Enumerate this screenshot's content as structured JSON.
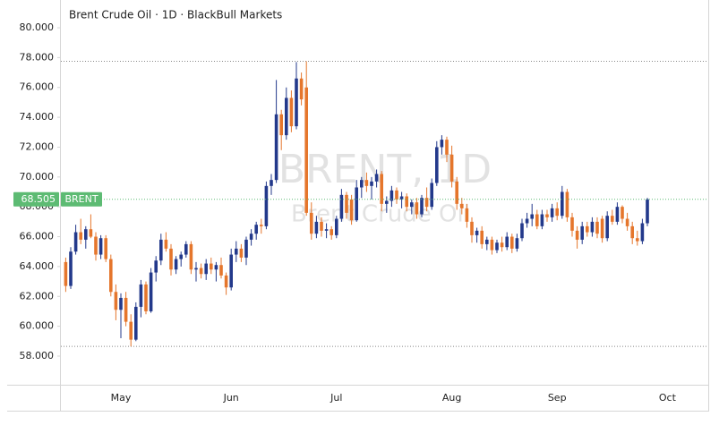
{
  "chart_data": {
    "type": "candlestick",
    "title": "Brent Crude Oil · 1D · BlackBull Markets",
    "watermark": "BRENT, 1D",
    "watermark_subtitle": "Brent Crude Oil",
    "symbol": "BRENT",
    "last_price": {
      "value": 68.505,
      "label": "68.505"
    },
    "up_color": "#23398b",
    "down_color": "#e5762c",
    "last_color": "#5dbb73",
    "ylim": [
      56.08,
      81.86
    ],
    "yticks": [
      {
        "value": 58,
        "label": "58.000"
      },
      {
        "value": 60,
        "label": "60.000"
      },
      {
        "value": 62,
        "label": "62.000"
      },
      {
        "value": 64,
        "label": "64.000"
      },
      {
        "value": 66,
        "label": "66.000"
      },
      {
        "value": 68,
        "label": "68.000"
      },
      {
        "value": 70,
        "label": "70.000"
      },
      {
        "value": 72,
        "label": "72.000"
      },
      {
        "value": 74,
        "label": "74.000"
      },
      {
        "value": 76,
        "label": "76.000"
      },
      {
        "value": 78,
        "label": "78.000"
      },
      {
        "value": 80,
        "label": "80.000"
      }
    ],
    "categories": [
      null,
      null,
      null,
      null,
      null,
      null,
      null,
      null,
      null,
      null,
      null,
      "May",
      null,
      null,
      null,
      null,
      null,
      null,
      null,
      null,
      null,
      null,
      null,
      null,
      null,
      null,
      null,
      null,
      null,
      null,
      null,
      null,
      null,
      "Jun",
      null,
      null,
      null,
      null,
      null,
      null,
      null,
      null,
      null,
      null,
      null,
      null,
      null,
      null,
      null,
      null,
      null,
      null,
      null,
      null,
      "Jul",
      null,
      null,
      null,
      null,
      null,
      null,
      null,
      null,
      null,
      null,
      null,
      null,
      null,
      null,
      null,
      null,
      null,
      null,
      null,
      null,
      null,
      null,
      "Aug",
      null,
      null,
      null,
      null,
      null,
      null,
      null,
      null,
      null,
      null,
      null,
      null,
      null,
      null,
      null,
      null,
      null,
      null,
      null,
      null,
      "Sep",
      null,
      null,
      null,
      null,
      null,
      null,
      null,
      null,
      null,
      null,
      null,
      null,
      null,
      null,
      null,
      null,
      null,
      null,
      null,
      null,
      null,
      "Oct"
    ],
    "open": [
      64.3,
      62.7,
      65.0,
      66.3,
      65.8,
      66.5,
      66.0,
      64.8,
      65.9,
      64.5,
      62.3,
      61.1,
      61.9,
      60.3,
      59.1,
      61.3,
      62.8,
      61.0,
      63.6,
      64.4,
      65.8,
      65.2,
      63.8,
      64.5,
      64.8,
      65.5,
      63.8,
      63.9,
      63.5,
      64.2,
      63.8,
      64.1,
      63.4,
      62.6,
      64.8,
      65.2,
      64.6,
      65.8,
      66.2,
      66.8,
      66.7,
      69.4,
      69.8,
      74.2,
      72.8,
      75.3,
      73.4,
      76.6,
      76.0,
      67.6,
      66.2,
      67.0,
      66.4,
      66.5,
      66.1,
      67.2,
      68.8,
      68.5,
      67.1,
      69.3,
      69.8,
      69.4,
      69.7,
      70.2,
      68.2,
      68.4,
      69.1,
      68.5,
      68.7,
      68.0,
      68.3,
      67.5,
      68.6,
      68.0,
      69.6,
      72.0,
      72.5,
      71.5,
      69.7,
      68.2,
      67.9,
      67.0,
      66.1,
      66.4,
      65.5,
      65.8,
      65.1,
      65.6,
      65.3,
      66.0,
      65.2,
      65.9,
      66.9,
      67.2,
      67.5,
      66.7,
      67.5,
      67.3,
      67.9,
      67.4,
      69.0,
      67.3,
      66.4,
      65.8,
      66.7,
      66.3,
      67.0,
      67.2,
      65.9,
      67.4,
      67.0,
      68.0,
      67.2,
      66.7,
      65.9,
      65.7,
      66.9,
      null,
      null,
      null,
      null
    ],
    "high": [
      64.6,
      65.3,
      66.8,
      67.2,
      66.7,
      67.5,
      66.3,
      66.1,
      66.1,
      64.8,
      62.8,
      62.2,
      62.3,
      60.8,
      61.6,
      63.1,
      63.0,
      63.9,
      64.7,
      66.2,
      66.3,
      65.5,
      64.7,
      65.0,
      65.7,
      65.7,
      64.3,
      64.2,
      64.5,
      64.6,
      64.3,
      64.6,
      63.6,
      65.2,
      65.7,
      65.5,
      66.0,
      66.5,
      67.0,
      67.2,
      69.7,
      70.2,
      76.5,
      74.5,
      76.0,
      75.8,
      77.7,
      77.0,
      77.75,
      68.3,
      67.4,
      67.3,
      66.9,
      66.7,
      67.4,
      69.2,
      69.0,
      68.8,
      69.8,
      70.0,
      70.3,
      70.0,
      70.5,
      70.4,
      68.7,
      69.4,
      69.3,
      69.0,
      68.9,
      68.5,
      68.6,
      68.8,
      69.3,
      69.9,
      72.4,
      72.8,
      72.7,
      72.1,
      70.0,
      68.6,
      68.2,
      67.3,
      66.6,
      66.7,
      66.0,
      66.0,
      65.8,
      66.0,
      66.3,
      66.2,
      66.2,
      67.2,
      67.6,
      68.2,
      67.8,
      67.8,
      67.8,
      68.2,
      68.3,
      69.4,
      69.2,
      67.6,
      66.7,
      67.0,
      67.0,
      67.3,
      67.3,
      67.4,
      67.7,
      67.8,
      68.3,
      68.1,
      67.6,
      67.0,
      66.4,
      67.2,
      68.6,
      null,
      null,
      null,
      null
    ],
    "low": [
      62.3,
      62.5,
      64.8,
      65.5,
      65.2,
      65.9,
      64.4,
      64.5,
      64.3,
      62.0,
      60.4,
      59.2,
      60.0,
      58.65,
      59.0,
      60.6,
      60.8,
      60.9,
      63.0,
      64.1,
      65.0,
      63.4,
      63.5,
      64.0,
      64.6,
      63.5,
      63.0,
      63.2,
      63.1,
      63.5,
      63.0,
      63.2,
      62.1,
      62.4,
      64.3,
      64.3,
      64.1,
      65.4,
      65.8,
      66.2,
      66.5,
      68.8,
      69.6,
      71.8,
      72.5,
      73.0,
      73.2,
      74.8,
      67.4,
      65.8,
      65.9,
      66.0,
      65.9,
      65.8,
      65.9,
      67.0,
      67.2,
      66.8,
      67.0,
      68.6,
      69.0,
      68.5,
      69.3,
      67.7,
      67.6,
      68.0,
      68.2,
      67.9,
      67.7,
      67.5,
      67.2,
      67.3,
      67.7,
      67.8,
      69.4,
      71.5,
      71.0,
      69.3,
      67.8,
      67.5,
      66.6,
      65.6,
      65.6,
      65.2,
      65.1,
      64.8,
      64.9,
      65.0,
      65.1,
      64.9,
      65.0,
      65.7,
      66.6,
      66.7,
      66.5,
      66.5,
      67.0,
      67.0,
      67.1,
      67.2,
      67.0,
      66.0,
      65.2,
      65.5,
      66.0,
      66.0,
      65.9,
      65.6,
      65.7,
      66.8,
      66.8,
      66.9,
      66.4,
      65.5,
      65.4,
      65.5,
      66.7,
      null,
      null,
      null,
      null
    ],
    "close": [
      62.7,
      65.0,
      66.3,
      65.8,
      66.5,
      66.0,
      64.8,
      65.9,
      64.5,
      62.3,
      61.1,
      61.9,
      60.3,
      59.1,
      61.3,
      62.8,
      61.0,
      63.6,
      64.4,
      65.8,
      65.2,
      63.8,
      64.5,
      64.8,
      65.5,
      63.8,
      63.9,
      63.5,
      64.2,
      63.8,
      64.1,
      63.4,
      62.6,
      64.8,
      65.2,
      64.6,
      65.8,
      66.2,
      66.8,
      66.7,
      69.4,
      69.8,
      74.2,
      72.8,
      75.3,
      73.4,
      76.6,
      75.2,
      67.6,
      66.2,
      67.0,
      66.4,
      66.5,
      66.1,
      67.2,
      68.8,
      67.6,
      67.1,
      69.3,
      69.8,
      69.4,
      69.7,
      70.2,
      68.2,
      68.4,
      69.1,
      68.5,
      68.7,
      68.0,
      68.3,
      67.5,
      68.6,
      68.0,
      69.6,
      72.0,
      72.5,
      71.5,
      69.7,
      68.2,
      67.9,
      67.0,
      66.1,
      66.4,
      65.5,
      65.8,
      65.1,
      65.6,
      65.3,
      66.0,
      65.2,
      65.9,
      66.9,
      67.2,
      67.5,
      66.7,
      67.5,
      67.3,
      67.9,
      67.4,
      69.0,
      67.3,
      66.4,
      65.8,
      66.7,
      66.3,
      67.0,
      66.2,
      65.9,
      67.4,
      67.0,
      68.0,
      67.2,
      66.7,
      65.9,
      65.7,
      66.9,
      68.505,
      null,
      null,
      null,
      null
    ]
  }
}
